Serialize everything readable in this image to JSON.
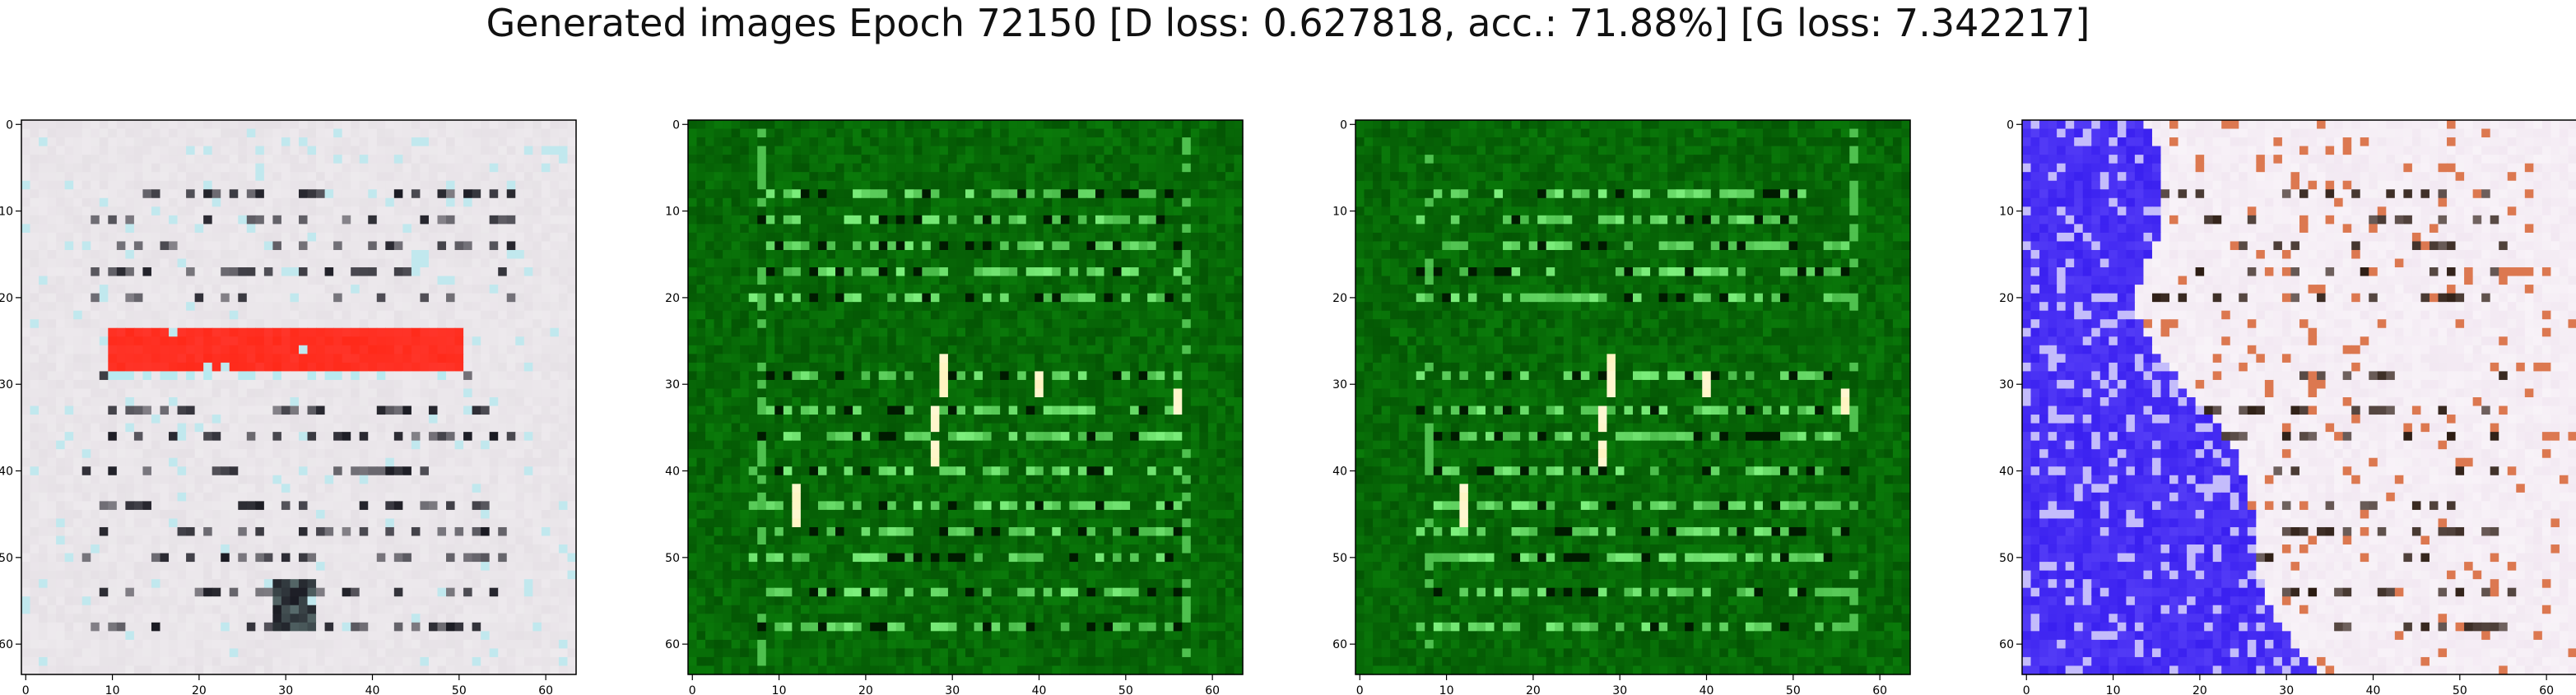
{
  "figure": {
    "title": "Generated images Epoch 72150 [D loss: 0.627818, acc.: 71.88%] [G loss: 7.342217]"
  },
  "axes": {
    "x_ticks": [
      "0",
      "10",
      "20",
      "30",
      "40",
      "50",
      "60"
    ],
    "y_ticks": [
      "0",
      "10",
      "20",
      "30",
      "40",
      "50",
      "60"
    ],
    "tick_values": [
      0,
      10,
      20,
      30,
      40,
      50,
      60
    ],
    "range": [
      -0.5,
      63.5
    ]
  },
  "panels": [
    {
      "name": "generated-image-1",
      "theme": "light-document",
      "base_color": "#e6e1e6",
      "accent_color": "#ff2a1a",
      "dark_color": "#1a1a22",
      "highlight_color": "#b8eaf0"
    },
    {
      "name": "generated-image-2",
      "theme": "green-document",
      "base_color": "#0a7a0a",
      "accent_color": "#fff4c0",
      "dark_color": "#001a00",
      "highlight_color": "#7df07d"
    },
    {
      "name": "generated-image-3",
      "theme": "green-document",
      "base_color": "#0a7a0a",
      "accent_color": "#fff4c0",
      "dark_color": "#001a00",
      "highlight_color": "#7df07d"
    },
    {
      "name": "generated-image-4",
      "theme": "blue-white-document",
      "base_color": "#f2e8f2",
      "accent_color": "#3a20f0",
      "dark_color": "#2a1a10",
      "highlight_color": "#ffffff"
    }
  ]
}
